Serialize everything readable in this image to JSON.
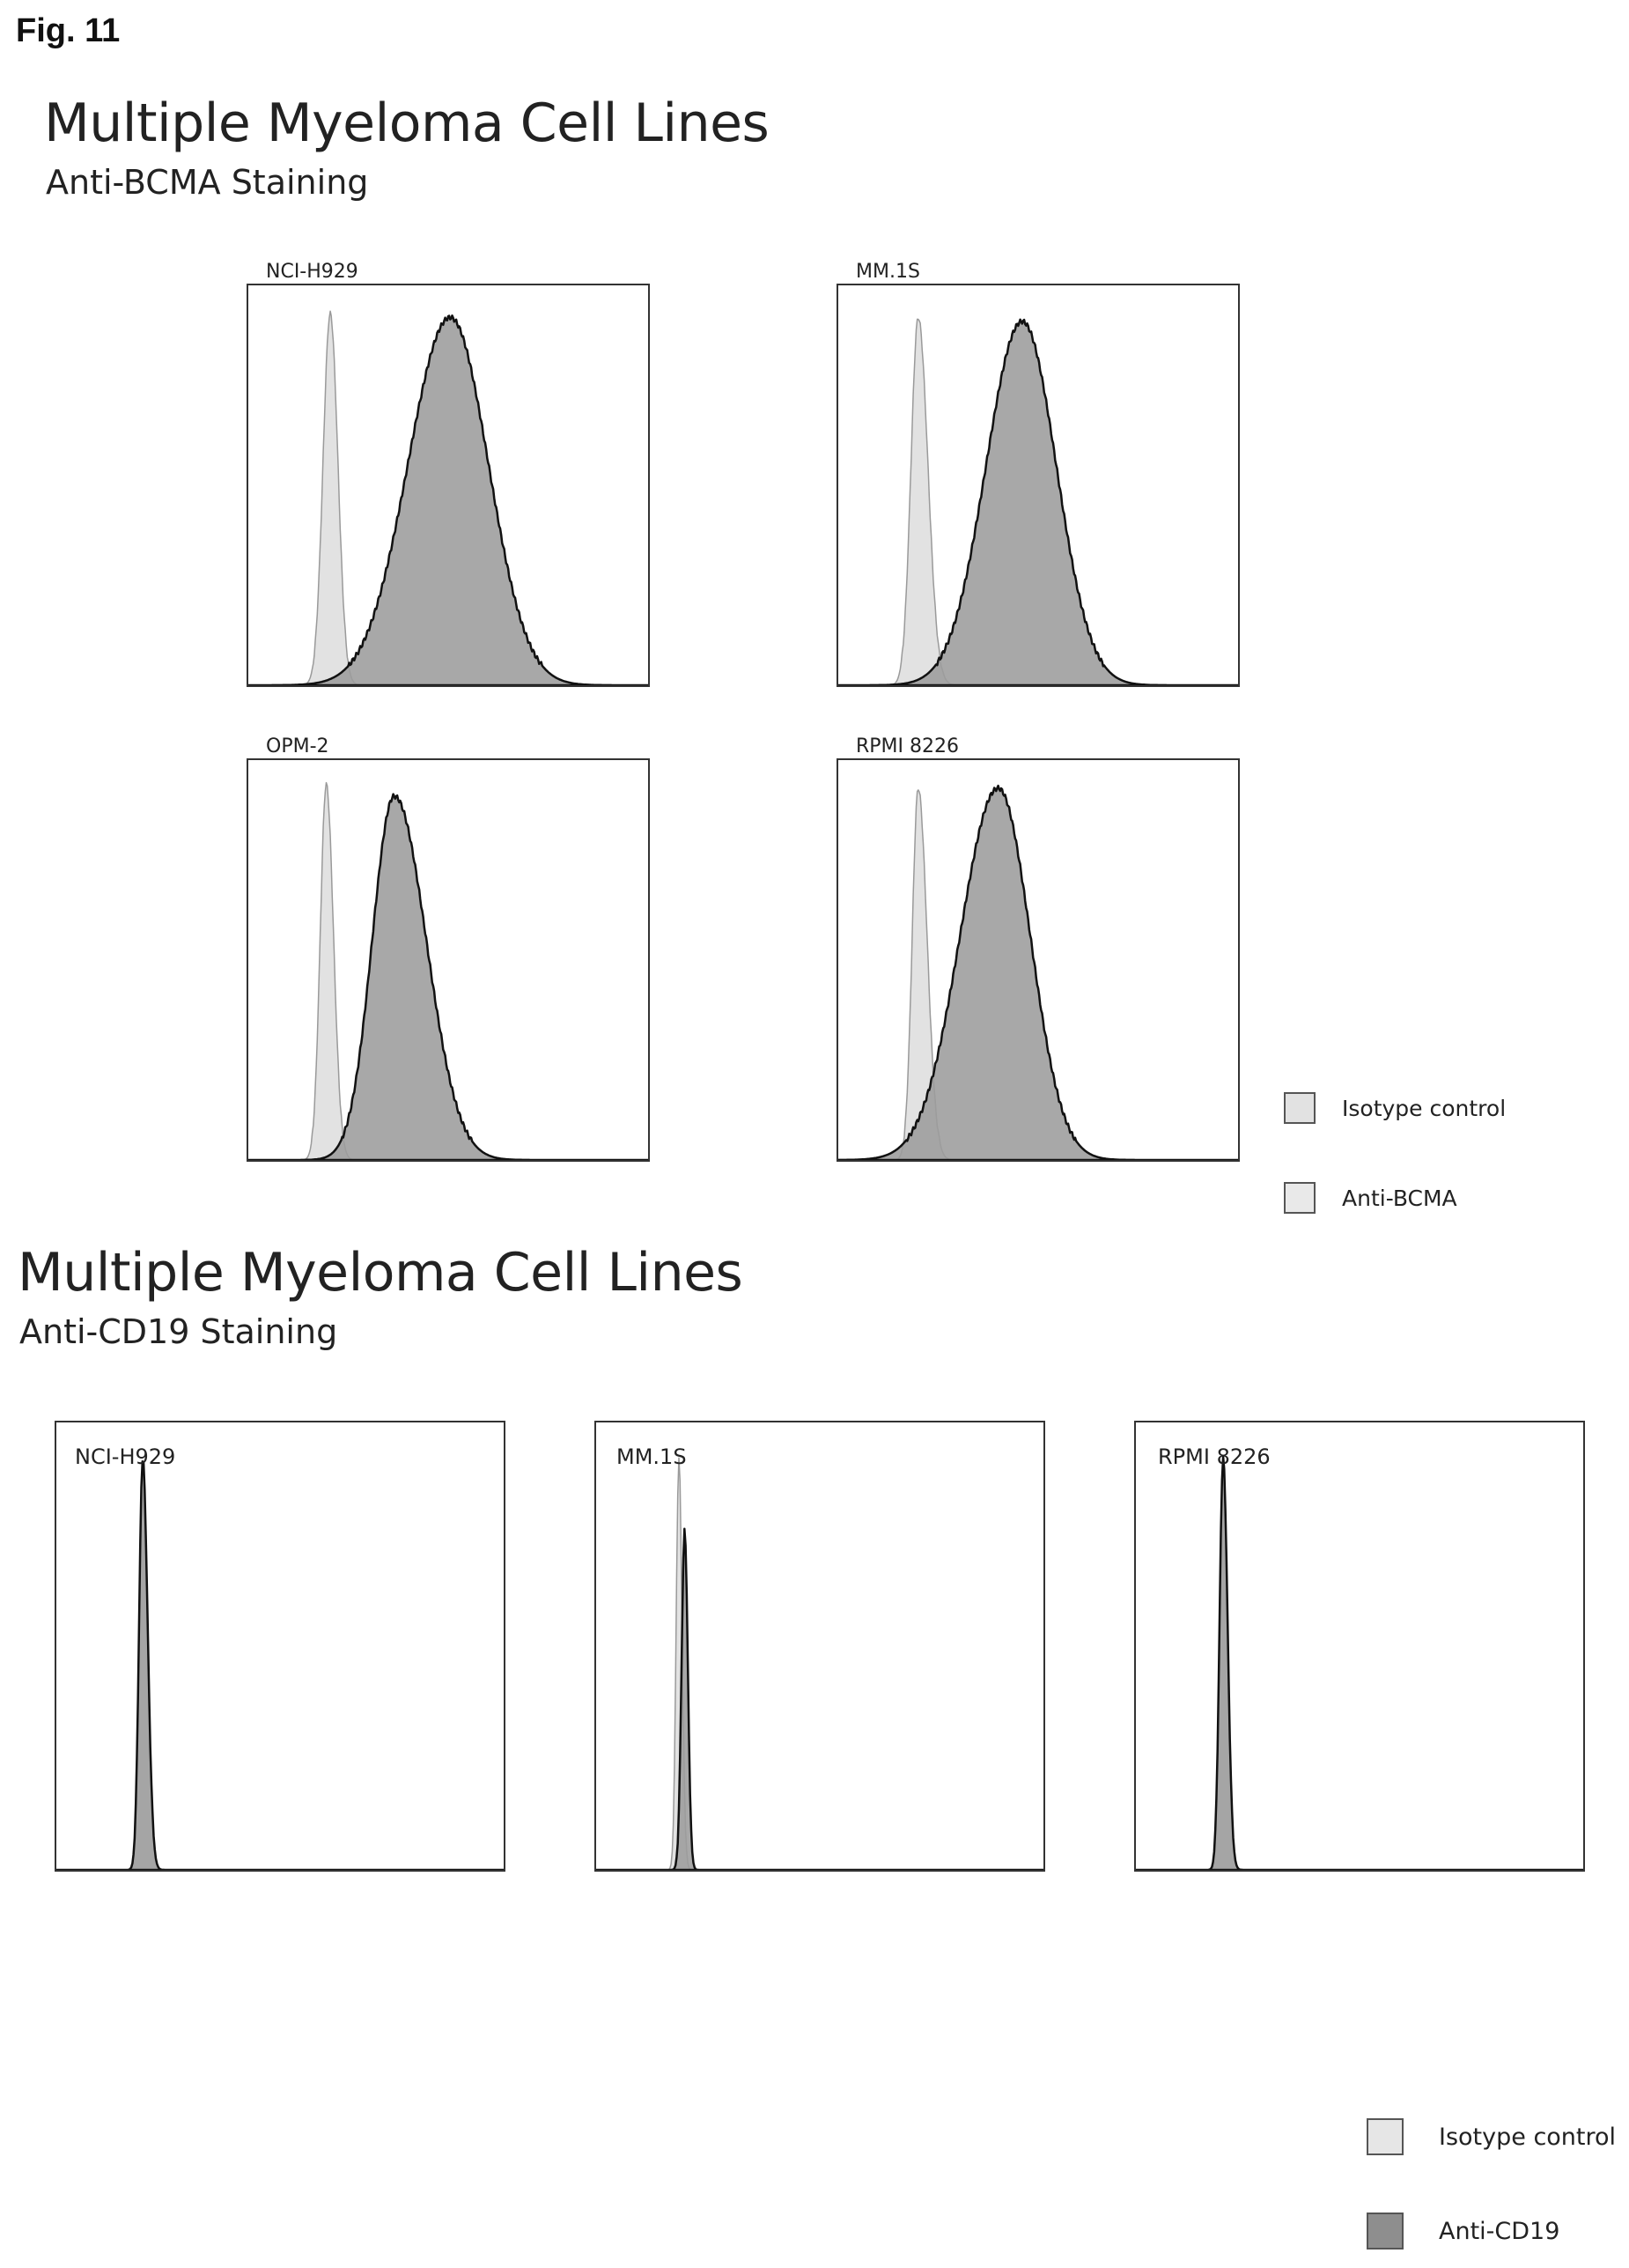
{
  "figure_label": "Fig. 11",
  "colors": {
    "isotype_fill": "#e2e2e2",
    "isotype_stroke": "#9a9a9a",
    "stain_fill": "#9c9c9c",
    "stain_stroke": "#111111",
    "frame": "#333333"
  },
  "section_bcma": {
    "title": "Multiple Myeloma Cell Lines",
    "subtitle": "Anti-BCMA Staining",
    "legend": [
      "Isotype control",
      "Anti-BCMA"
    ]
  },
  "section_cd19": {
    "title": "Multiple Myeloma Cell Lines",
    "subtitle": "Anti-CD19 Staining",
    "legend": [
      "Isotype control",
      "Anti-CD19"
    ]
  },
  "chart_data": [
    {
      "type": "area",
      "title": "NCI-H929",
      "xlim": [
        0,
        100
      ],
      "ylim": [
        0,
        100
      ],
      "series": [
        {
          "name": "Isotype control",
          "peaks": [
            {
              "center": 20.5,
              "height": 93,
              "width_left": 1.8,
              "width_right": 1.9
            }
          ]
        },
        {
          "name": "Anti-BCMA",
          "peaks": [
            {
              "center": 50.5,
              "height": 92,
              "width_left": 10.5,
              "width_right": 9.5
            }
          ]
        }
      ]
    },
    {
      "type": "area",
      "title": "MM.1S",
      "xlim": [
        0,
        100
      ],
      "ylim": [
        0,
        100
      ],
      "series": [
        {
          "name": "Isotype control",
          "peaks": [
            {
              "center": 20,
              "height": 92,
              "width_left": 1.8,
              "width_right": 2.4
            }
          ]
        },
        {
          "name": "Anti-BCMA",
          "peaks": [
            {
              "center": 46,
              "height": 91,
              "width_left": 9,
              "width_right": 8.5
            }
          ]
        }
      ]
    },
    {
      "type": "area",
      "title": "OPM-2",
      "xlim": [
        0,
        100
      ],
      "ylim": [
        0,
        100
      ],
      "series": [
        {
          "name": "Isotype control",
          "peaks": [
            {
              "center": 19.5,
              "height": 94,
              "width_left": 1.5,
              "width_right": 1.8
            }
          ]
        },
        {
          "name": "Anti-BCMA",
          "peaks": [
            {
              "center": 36.5,
              "height": 91,
              "width_left": 5.5,
              "width_right": 8
            }
          ]
        }
      ]
    },
    {
      "type": "area",
      "title": "RPMI 8226",
      "xlim": [
        0,
        100
      ],
      "ylim": [
        0,
        100
      ],
      "series": [
        {
          "name": "Isotype control",
          "peaks": [
            {
              "center": 20,
              "height": 93,
              "width_left": 1.5,
              "width_right": 2.2
            }
          ]
        },
        {
          "name": "Anti-BCMA",
          "peaks": [
            {
              "center": 40,
              "height": 93,
              "width_left": 9.5,
              "width_right": 8
            }
          ]
        }
      ]
    },
    {
      "type": "area",
      "title": "NCI-H929",
      "xlim": [
        0,
        100
      ],
      "ylim": [
        0,
        100
      ],
      "series": [
        {
          "name": "Isotype control",
          "peaks": [
            {
              "center": 19.3,
              "height": 90,
              "width_left": 0.8,
              "width_right": 1.1
            }
          ]
        },
        {
          "name": "Anti-CD19",
          "peaks": [
            {
              "center": 19.3,
              "height": 92,
              "width_left": 0.8,
              "width_right": 1.1
            }
          ]
        }
      ]
    },
    {
      "type": "area",
      "title": "MM.1S",
      "xlim": [
        0,
        100
      ],
      "ylim": [
        0,
        100
      ],
      "series": [
        {
          "name": "Isotype control",
          "peaks": [
            {
              "center": 18.5,
              "height": 92,
              "width_left": 0.6,
              "width_right": 0.7
            }
          ]
        },
        {
          "name": "Anti-CD19",
          "peaks": [
            {
              "center": 19.8,
              "height": 76,
              "width_left": 0.7,
              "width_right": 0.7
            }
          ]
        }
      ]
    },
    {
      "type": "area",
      "title": "RPMI 8226",
      "xlim": [
        0,
        100
      ],
      "ylim": [
        0,
        100
      ],
      "series": [
        {
          "name": "Isotype control",
          "peaks": [
            {
              "center": 19.5,
              "height": 90,
              "width_left": 0.8,
              "width_right": 1.0
            }
          ]
        },
        {
          "name": "Anti-CD19",
          "peaks": [
            {
              "center": 19.5,
              "height": 92,
              "width_left": 0.8,
              "width_right": 1.0
            }
          ]
        }
      ]
    }
  ]
}
